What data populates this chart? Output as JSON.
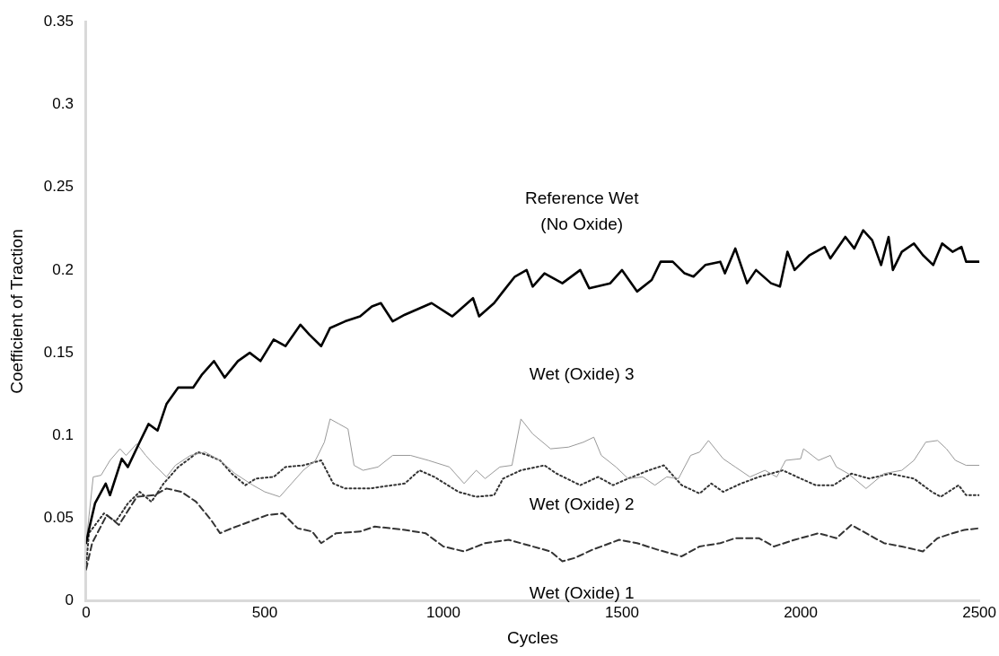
{
  "chart_data": {
    "type": "line",
    "xlabel": "Cycles",
    "ylabel": "Coefficient of Traction",
    "xlim": [
      0,
      2500
    ],
    "xticks": [
      0,
      500,
      1000,
      1500,
      2000,
      2500
    ],
    "ylim": [
      0,
      0.35
    ],
    "yticks": [
      0,
      0.05,
      0.1,
      0.15,
      0.2,
      0.25,
      0.3,
      0.35
    ],
    "grid": false,
    "legend": false,
    "marker": "none",
    "series": [
      {
        "name": "Reference Wet\n(No Oxide)",
        "color": "#000000",
        "line_style": "solid",
        "x": [
          0,
          10,
          25,
          55,
          67,
          100,
          117,
          150,
          175,
          200,
          225,
          258,
          300,
          325,
          358,
          388,
          425,
          458,
          488,
          525,
          558,
          600,
          625,
          658,
          683,
          725,
          767,
          800,
          825,
          858,
          892,
          967,
          1025,
          1083,
          1100,
          1142,
          1167,
          1200,
          1233,
          1250,
          1283,
          1333,
          1383,
          1408,
          1467,
          1500,
          1542,
          1583,
          1608,
          1642,
          1675,
          1700,
          1733,
          1775,
          1788,
          1817,
          1850,
          1875,
          1917,
          1942,
          1963,
          1983,
          2025,
          2067,
          2083,
          2125,
          2150,
          2175,
          2200,
          2225,
          2246,
          2258,
          2283,
          2317,
          2342,
          2371,
          2396,
          2425,
          2450,
          2463,
          2500
        ],
        "values": [
          0.035,
          0.045,
          0.059,
          0.071,
          0.064,
          0.086,
          0.081,
          0.096,
          0.107,
          0.103,
          0.119,
          0.129,
          0.129,
          0.137,
          0.145,
          0.135,
          0.145,
          0.15,
          0.145,
          0.158,
          0.154,
          0.167,
          0.161,
          0.154,
          0.165,
          0.169,
          0.172,
          0.178,
          0.18,
          0.169,
          0.173,
          0.18,
          0.172,
          0.183,
          0.172,
          0.18,
          0.187,
          0.196,
          0.2,
          0.19,
          0.198,
          0.192,
          0.2,
          0.189,
          0.192,
          0.2,
          0.187,
          0.194,
          0.205,
          0.205,
          0.198,
          0.196,
          0.203,
          0.205,
          0.198,
          0.213,
          0.192,
          0.2,
          0.192,
          0.19,
          0.211,
          0.2,
          0.209,
          0.214,
          0.207,
          0.22,
          0.213,
          0.224,
          0.218,
          0.203,
          0.22,
          0.2,
          0.211,
          0.216,
          0.209,
          0.203,
          0.216,
          0.211,
          0.214,
          0.205,
          0.205
        ]
      },
      {
        "name": "Wet (Oxide) 3",
        "color": "#999999",
        "line_style": "solid",
        "x": [
          0,
          20,
          42,
          67,
          95,
          112,
          142,
          167,
          192,
          225,
          250,
          292,
          333,
          375,
          417,
          467,
          500,
          542,
          575,
          608,
          642,
          667,
          683,
          708,
          733,
          750,
          775,
          817,
          858,
          908,
          958,
          1017,
          1058,
          1092,
          1117,
          1158,
          1192,
          1217,
          1250,
          1300,
          1350,
          1392,
          1421,
          1442,
          1483,
          1517,
          1558,
          1592,
          1625,
          1658,
          1692,
          1717,
          1742,
          1783,
          1817,
          1858,
          1900,
          1933,
          1958,
          2000,
          2008,
          2050,
          2083,
          2100,
          2133,
          2183,
          2233,
          2283,
          2317,
          2350,
          2383,
          2408,
          2433,
          2463,
          2500
        ],
        "values": [
          0.035,
          0.075,
          0.076,
          0.085,
          0.092,
          0.088,
          0.095,
          0.088,
          0.082,
          0.075,
          0.082,
          0.088,
          0.09,
          0.085,
          0.077,
          0.07,
          0.066,
          0.063,
          0.071,
          0.079,
          0.085,
          0.096,
          0.11,
          0.107,
          0.104,
          0.082,
          0.079,
          0.081,
          0.088,
          0.088,
          0.085,
          0.081,
          0.071,
          0.079,
          0.074,
          0.081,
          0.082,
          0.11,
          0.101,
          0.092,
          0.093,
          0.096,
          0.099,
          0.088,
          0.081,
          0.074,
          0.075,
          0.07,
          0.075,
          0.074,
          0.088,
          0.09,
          0.097,
          0.086,
          0.081,
          0.075,
          0.079,
          0.075,
          0.085,
          0.086,
          0.092,
          0.085,
          0.088,
          0.081,
          0.077,
          0.068,
          0.077,
          0.079,
          0.085,
          0.096,
          0.097,
          0.092,
          0.085,
          0.082,
          0.082
        ]
      },
      {
        "name": "Wet (Oxide) 2",
        "color": "#333333",
        "line_style": "dotted",
        "x": [
          0,
          8,
          50,
          83,
          117,
          150,
          183,
          217,
          258,
          283,
          313,
          342,
          375,
          408,
          446,
          475,
          525,
          558,
          608,
          658,
          692,
          725,
          792,
          858,
          892,
          933,
          975,
          1042,
          1092,
          1142,
          1167,
          1217,
          1283,
          1317,
          1383,
          1433,
          1475,
          1517,
          1575,
          1617,
          1667,
          1717,
          1750,
          1783,
          1833,
          1883,
          1950,
          2000,
          2042,
          2092,
          2142,
          2192,
          2250,
          2317,
          2367,
          2392,
          2442,
          2463,
          2500
        ],
        "values": [
          0.02,
          0.041,
          0.053,
          0.048,
          0.059,
          0.066,
          0.06,
          0.071,
          0.081,
          0.085,
          0.09,
          0.088,
          0.085,
          0.077,
          0.07,
          0.074,
          0.075,
          0.081,
          0.082,
          0.085,
          0.071,
          0.068,
          0.068,
          0.07,
          0.071,
          0.079,
          0.075,
          0.066,
          0.063,
          0.064,
          0.074,
          0.079,
          0.082,
          0.077,
          0.07,
          0.075,
          0.07,
          0.074,
          0.079,
          0.082,
          0.07,
          0.065,
          0.071,
          0.066,
          0.071,
          0.075,
          0.079,
          0.074,
          0.07,
          0.07,
          0.077,
          0.074,
          0.077,
          0.074,
          0.066,
          0.063,
          0.07,
          0.064,
          0.064
        ]
      },
      {
        "name": "Wet (Oxide) 1",
        "color": "#333333",
        "line_style": "dashed",
        "x": [
          0,
          17,
          58,
          92,
          142,
          192,
          225,
          267,
          308,
          350,
          375,
          408,
          458,
          508,
          550,
          592,
          633,
          658,
          700,
          767,
          808,
          892,
          950,
          1000,
          1058,
          1117,
          1183,
          1250,
          1300,
          1333,
          1367,
          1417,
          1492,
          1542,
          1600,
          1667,
          1717,
          1775,
          1817,
          1883,
          1925,
          1983,
          2050,
          2100,
          2142,
          2183,
          2233,
          2283,
          2342,
          2383,
          2425,
          2458,
          2500
        ],
        "values": [
          0.019,
          0.035,
          0.052,
          0.046,
          0.063,
          0.064,
          0.068,
          0.066,
          0.06,
          0.049,
          0.041,
          0.044,
          0.048,
          0.052,
          0.053,
          0.044,
          0.042,
          0.035,
          0.041,
          0.042,
          0.045,
          0.043,
          0.041,
          0.033,
          0.03,
          0.035,
          0.037,
          0.033,
          0.03,
          0.024,
          0.026,
          0.031,
          0.037,
          0.035,
          0.031,
          0.027,
          0.033,
          0.035,
          0.038,
          0.038,
          0.033,
          0.037,
          0.041,
          0.038,
          0.046,
          0.041,
          0.035,
          0.033,
          0.03,
          0.038,
          0.041,
          0.043,
          0.044
        ]
      }
    ]
  }
}
